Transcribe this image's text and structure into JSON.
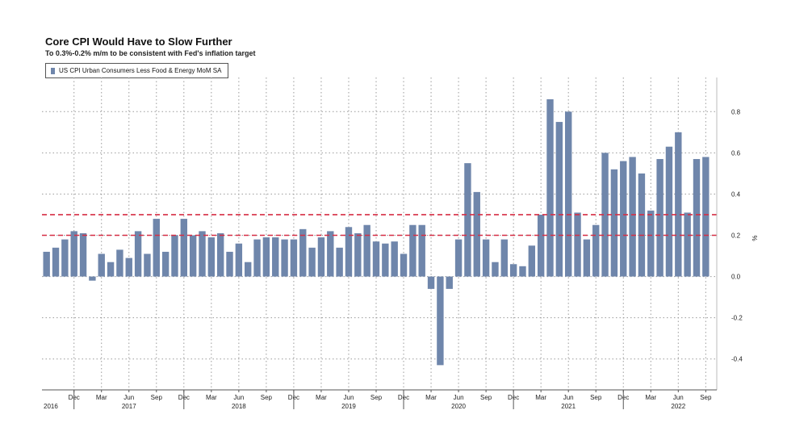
{
  "title": "Core CPI Would Have to Slow Further",
  "subtitle": "To 0.3%-0.2% m/m to be consistent with Fed's inflation target",
  "chart_data": {
    "type": "bar",
    "series": [
      {
        "name": "US CPI Urban Consumers Less Food & Energy MoM SA",
        "color": "#6f86ab",
        "values": [
          0.12,
          0.14,
          0.18,
          0.22,
          0.21,
          -0.02,
          0.11,
          0.07,
          0.13,
          0.09,
          0.22,
          0.11,
          0.28,
          0.12,
          0.2,
          0.28,
          0.2,
          0.22,
          0.19,
          0.21,
          0.12,
          0.16,
          0.07,
          0.18,
          0.19,
          0.19,
          0.18,
          0.18,
          0.23,
          0.14,
          0.19,
          0.22,
          0.14,
          0.24,
          0.21,
          0.25,
          0.17,
          0.16,
          0.17,
          0.11,
          0.25,
          0.25,
          -0.06,
          -0.43,
          -0.06,
          0.18,
          0.55,
          0.41,
          0.18,
          0.07,
          0.18,
          0.06,
          0.05,
          0.15,
          0.3,
          0.86,
          0.75,
          0.8,
          0.31,
          0.18,
          0.25,
          0.6,
          0.52,
          0.56,
          0.58,
          0.5,
          0.32,
          0.57,
          0.63,
          0.7,
          0.31,
          0.57,
          0.58
        ]
      }
    ],
    "x_start": "2016-09",
    "x_labels": [
      {
        "label": "Dec",
        "index": 3
      },
      {
        "label": "Mar",
        "index": 6
      },
      {
        "label": "Jun",
        "index": 9
      },
      {
        "label": "Sep",
        "index": 12
      },
      {
        "label": "Dec",
        "index": 15
      },
      {
        "label": "Mar",
        "index": 18
      },
      {
        "label": "Jun",
        "index": 21
      },
      {
        "label": "Sep",
        "index": 24
      },
      {
        "label": "Dec",
        "index": 27
      },
      {
        "label": "Mar",
        "index": 30
      },
      {
        "label": "Jun",
        "index": 33
      },
      {
        "label": "Sep",
        "index": 36
      },
      {
        "label": "Dec",
        "index": 39
      },
      {
        "label": "Mar",
        "index": 42
      },
      {
        "label": "Jun",
        "index": 45
      },
      {
        "label": "Sep",
        "index": 48
      },
      {
        "label": "Dec",
        "index": 51
      },
      {
        "label": "Mar",
        "index": 54
      },
      {
        "label": "Jun",
        "index": 57
      },
      {
        "label": "Sep",
        "index": 60
      },
      {
        "label": "Dec",
        "index": 63
      },
      {
        "label": "Mar",
        "index": 66
      },
      {
        "label": "Jun",
        "index": 69
      },
      {
        "label": "Sep",
        "index": 72
      }
    ],
    "year_labels": [
      {
        "label": "2016",
        "index": 0
      },
      {
        "label": "2017",
        "index": 9
      },
      {
        "label": "2018",
        "index": 21
      },
      {
        "label": "2019",
        "index": 33
      },
      {
        "label": "2020",
        "index": 45
      },
      {
        "label": "2021",
        "index": 57
      },
      {
        "label": "2022",
        "index": 69
      }
    ],
    "year_boundaries": [
      3.5,
      15.5,
      27.5,
      39.5,
      51.5,
      63.5
    ],
    "ylim": [
      -0.55,
      0.95
    ],
    "yticks": [
      -0.4,
      -0.2,
      0.0,
      0.2,
      0.4,
      0.6,
      0.8
    ],
    "ytick_labels": [
      "-0.4",
      "-0.2",
      "0.0",
      "0.2",
      "0.4",
      "0.6",
      "0.8"
    ],
    "ylabel": "%",
    "reference_lines": [
      {
        "value": 0.3,
        "color": "#d62e45"
      },
      {
        "value": 0.2,
        "color": "#d62e45"
      }
    ],
    "grid": true,
    "legend_position": "top-left"
  }
}
